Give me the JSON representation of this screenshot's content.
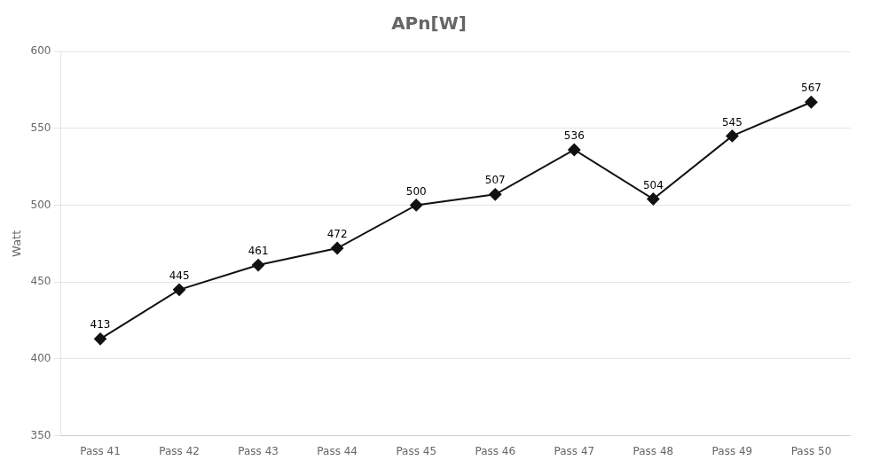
{
  "chart_data": {
    "type": "line",
    "title": "APn[W]",
    "ylabel": "Watt",
    "categories": [
      "Pass 41",
      "Pass 42",
      "Pass 43",
      "Pass 44",
      "Pass 45",
      "Pass 46",
      "Pass 47",
      "Pass 48",
      "Pass 49",
      "Pass 50"
    ],
    "values": [
      413,
      445,
      461,
      472,
      500,
      507,
      536,
      504,
      545,
      567
    ],
    "color": "#111111",
    "marker": "diamond",
    "ylim": [
      350,
      600
    ],
    "yticks": [
      350,
      400,
      450,
      500,
      550,
      600
    ],
    "grid": true,
    "data_labels": true
  }
}
